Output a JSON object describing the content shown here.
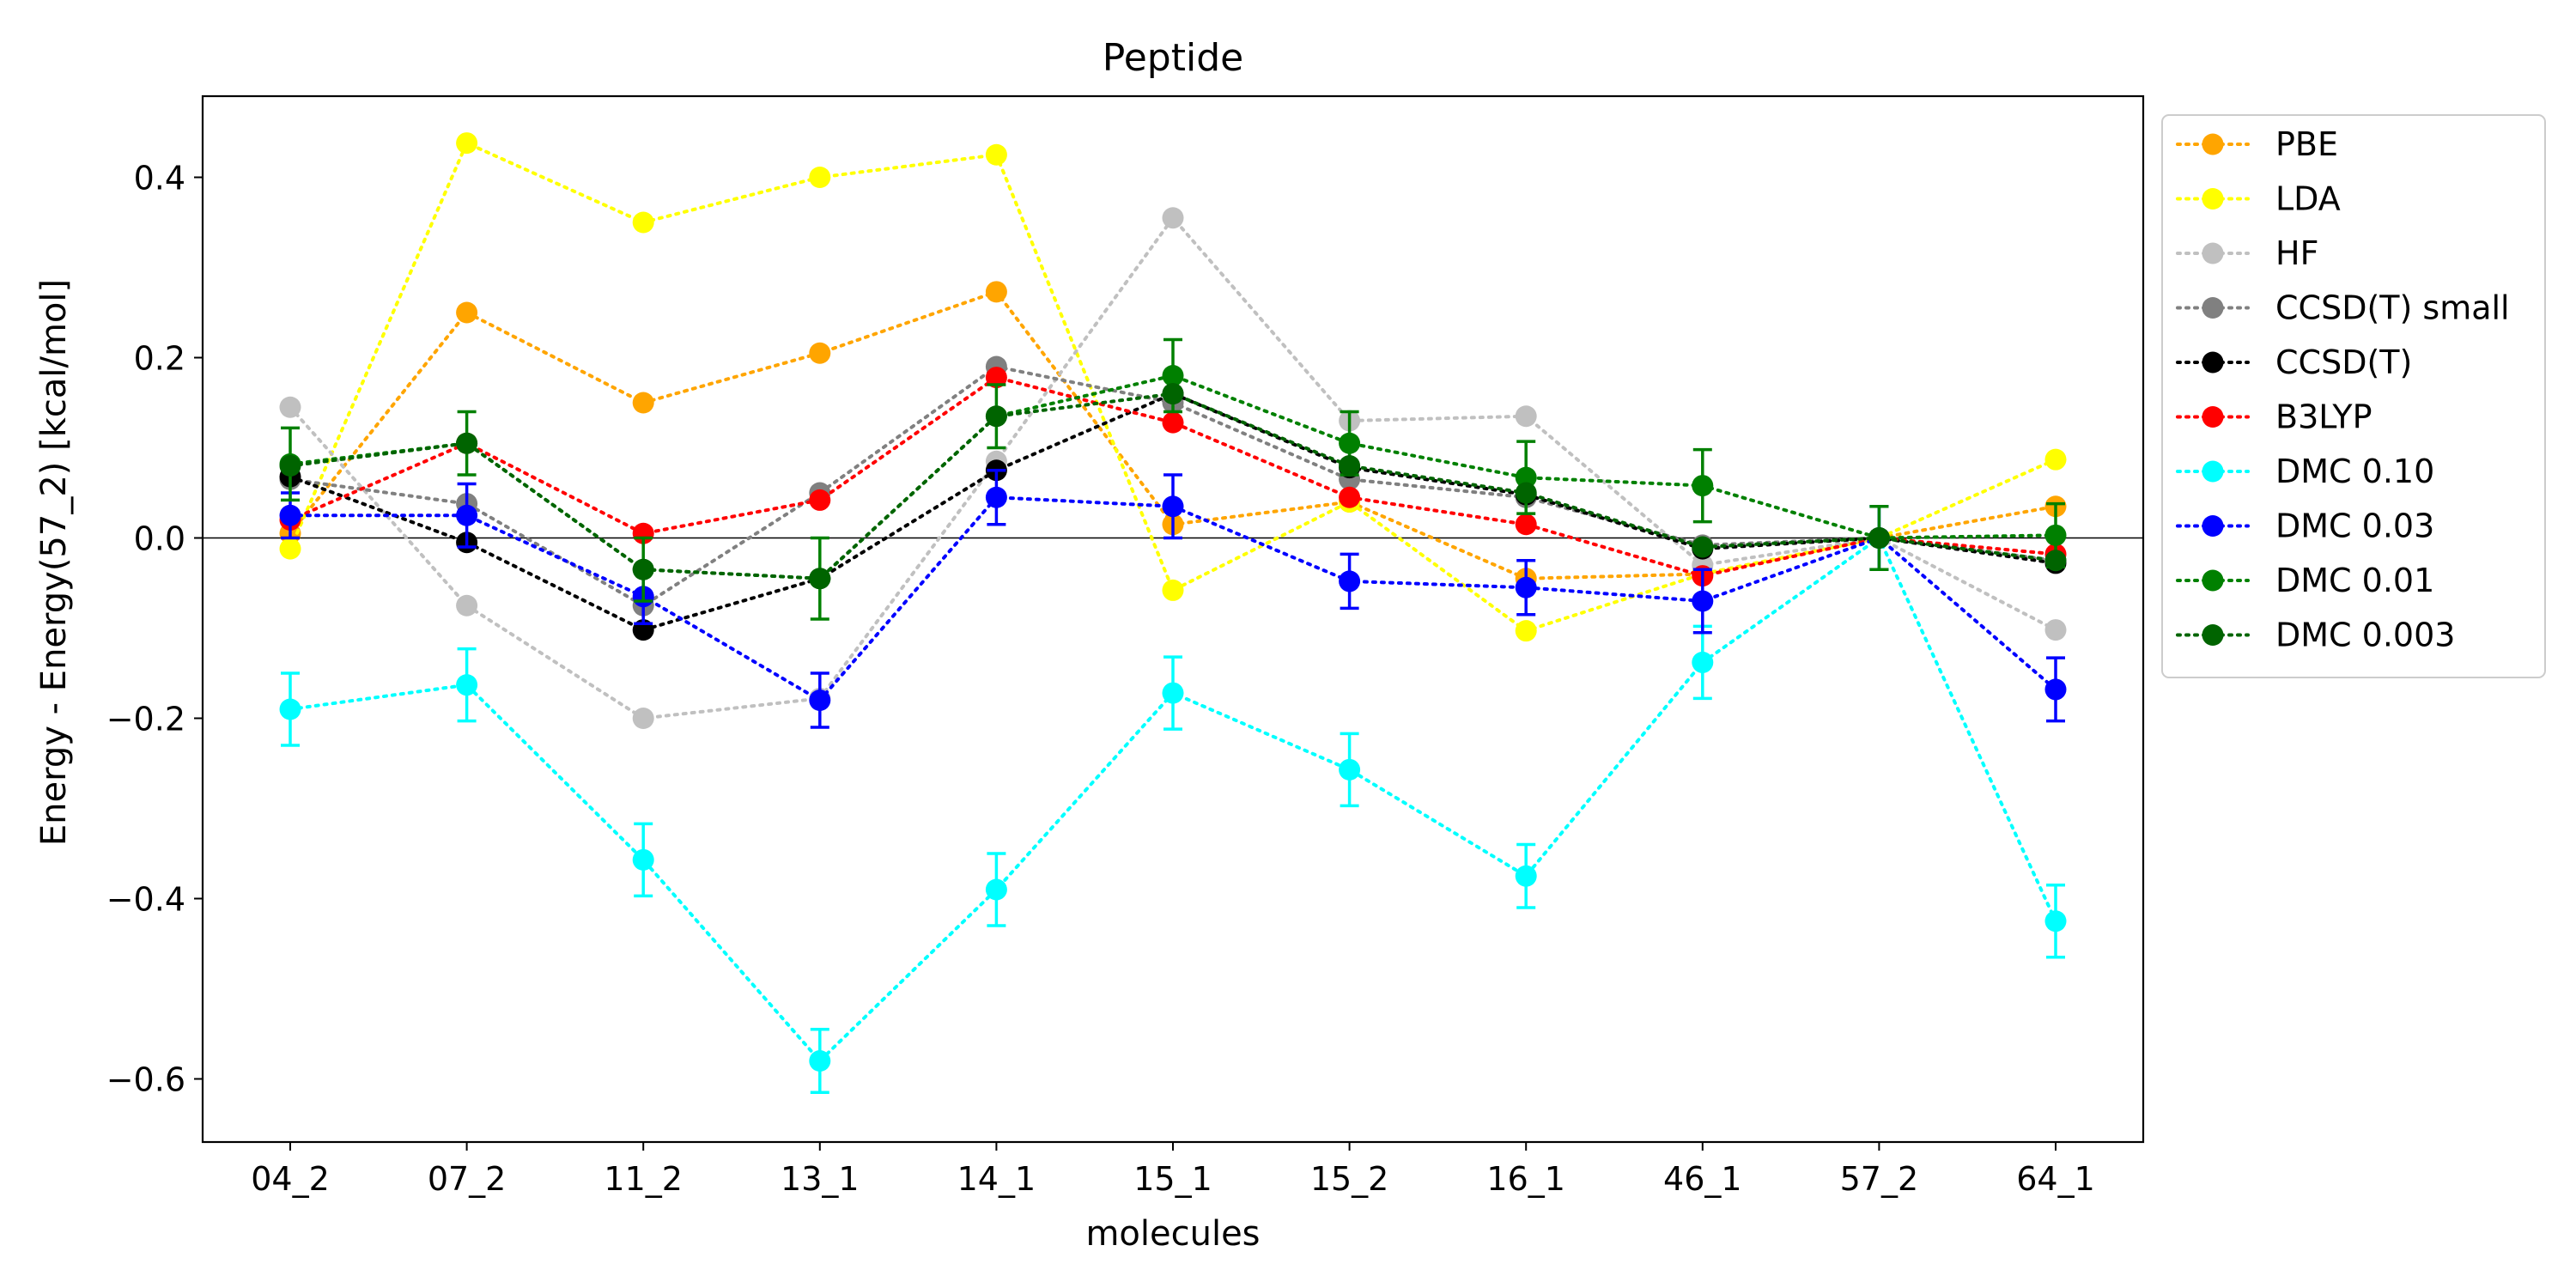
{
  "chart_data": {
    "type": "line",
    "title": "Peptide",
    "xlabel": "molecules",
    "ylabel": "Energy - Energy(57_2) [kcal/mol]",
    "categories": [
      "04_2",
      "07_2",
      "11_2",
      "13_1",
      "14_1",
      "15_1",
      "15_2",
      "16_1",
      "46_1",
      "57_2",
      "64_1"
    ],
    "ylim": [
      -0.67,
      0.49
    ],
    "yticks": [
      -0.6,
      -0.4,
      -0.2,
      0.0,
      0.2,
      0.4
    ],
    "ytick_labels": [
      "−0.6",
      "−0.4",
      "−0.2",
      "0.0",
      "0.2",
      "0.4"
    ],
    "reference_line": 0,
    "grid": false,
    "legend_position": "outside upper right",
    "series": [
      {
        "name": "PBE",
        "color": "#ffa500",
        "values": [
          0.005,
          0.25,
          0.15,
          0.205,
          0.273,
          0.015,
          0.04,
          -0.045,
          -0.04,
          0.0,
          0.035
        ]
      },
      {
        "name": "LDA",
        "color": "#ffff00",
        "values": [
          -0.012,
          0.438,
          0.35,
          0.4,
          0.425,
          -0.058,
          0.04,
          -0.103,
          -0.04,
          0.0,
          0.087
        ]
      },
      {
        "name": "HF",
        "color": "#c0c0c0",
        "values": [
          0.145,
          -0.075,
          -0.2,
          -0.178,
          0.085,
          0.355,
          0.13,
          0.135,
          -0.03,
          0.0,
          -0.102
        ]
      },
      {
        "name": "CCSD(T) small",
        "color": "#808080",
        "values": [
          0.065,
          0.038,
          -0.075,
          0.05,
          0.19,
          0.15,
          0.065,
          0.045,
          -0.008,
          0.0,
          -0.025
        ]
      },
      {
        "name": "CCSD(T)",
        "color": "#000000",
        "values": [
          0.068,
          -0.005,
          -0.102,
          -0.045,
          0.075,
          0.16,
          0.078,
          0.048,
          -0.012,
          0.0,
          -0.028
        ]
      },
      {
        "name": "B3LYP",
        "color": "#ff0000",
        "values": [
          0.02,
          0.105,
          0.005,
          0.042,
          0.178,
          0.128,
          0.045,
          0.015,
          -0.042,
          0.0,
          -0.018
        ]
      },
      {
        "name": "DMC 0.10",
        "color": "#00ffff",
        "values": [
          -0.19,
          -0.163,
          -0.357,
          -0.58,
          -0.39,
          -0.172,
          -0.257,
          -0.375,
          -0.138,
          0.0,
          -0.425
        ],
        "errors": [
          0.04,
          0.04,
          0.04,
          0.035,
          0.04,
          0.04,
          0.04,
          0.035,
          0.04,
          0.035,
          0.04
        ]
      },
      {
        "name": "DMC 0.03",
        "color": "#0000ff",
        "values": [
          0.025,
          0.025,
          -0.065,
          -0.18,
          0.045,
          0.035,
          -0.048,
          -0.055,
          -0.07,
          0.0,
          -0.168
        ],
        "errors": [
          0.025,
          0.035,
          0.03,
          0.03,
          0.03,
          0.035,
          0.03,
          0.03,
          0.035,
          0.035,
          0.035
        ]
      },
      {
        "name": "DMC 0.01",
        "color": "#008000",
        "values": [
          0.082,
          0.105,
          -0.035,
          -0.045,
          0.135,
          0.18,
          0.105,
          0.067,
          0.058,
          0.0,
          0.003
        ],
        "errors": [
          0.04,
          0.035,
          0.035,
          0.045,
          0.035,
          0.04,
          0.035,
          0.04,
          0.04,
          0.035,
          0.035
        ]
      },
      {
        "name": "DMC 0.003",
        "color": "#006400",
        "values": [
          0.08,
          0.105,
          -0.035,
          -0.045,
          0.135,
          0.16,
          0.08,
          0.05,
          -0.01,
          0.0,
          -0.025
        ]
      }
    ]
  }
}
